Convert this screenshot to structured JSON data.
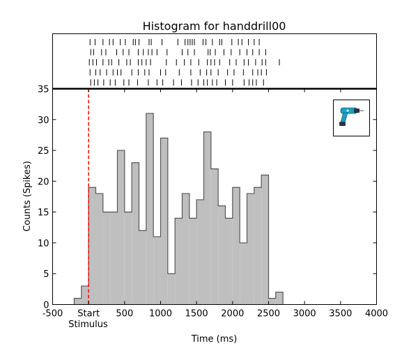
{
  "chart_data": {
    "type": "bar",
    "title": "Histogram for handdrill00",
    "xlabel": "Time (ms)",
    "ylabel": "Counts (Spikes)",
    "xlim": [
      -500,
      4000
    ],
    "ylim": [
      0,
      35
    ],
    "xticks": [
      -500,
      0,
      500,
      1000,
      1500,
      2000,
      2500,
      3000,
      3500,
      4000
    ],
    "xtick_labels": [
      "-500",
      "Start",
      "500",
      "1000",
      "1500",
      "2000",
      "2500",
      "3000",
      "3500",
      "4000"
    ],
    "stimulus_label": "Stimulus",
    "yticks": [
      0,
      5,
      10,
      15,
      20,
      25,
      30,
      35
    ],
    "bin_width": 100,
    "bin_starts": [
      -200,
      -100,
      0,
      100,
      200,
      300,
      400,
      500,
      600,
      700,
      800,
      900,
      1000,
      1100,
      1200,
      1300,
      1400,
      1500,
      1600,
      1700,
      1800,
      1900,
      2000,
      2100,
      2200,
      2300,
      2400,
      2500,
      2600
    ],
    "values": [
      1,
      3,
      19,
      18,
      15,
      15,
      25,
      15,
      23,
      12,
      31,
      11,
      27,
      5,
      14,
      18,
      14,
      17,
      28,
      22,
      16,
      14,
      19,
      10,
      18,
      19,
      21,
      1,
      2
    ],
    "stimulus_onset": 0,
    "bar_color": "#bfbfbf",
    "stimulus_line_color": "#ff0000",
    "raster_trials": [
      [
        20,
        90,
        200,
        290,
        340,
        440,
        510,
        620,
        650,
        700,
        840,
        870,
        1020,
        1240,
        1340,
        1380,
        1410,
        1440,
        1470,
        1590,
        1630,
        1720,
        1820,
        1850,
        1990,
        2080,
        2130,
        2220,
        2300,
        2370
      ],
      [
        30,
        70,
        180,
        240,
        390,
        480,
        560,
        690,
        760,
        830,
        880,
        950,
        1090,
        1300,
        1380,
        1470,
        1660,
        1690,
        1760,
        1880,
        1980,
        2100,
        2200,
        2280,
        2370,
        2460
      ],
      [
        10,
        60,
        110,
        200,
        280,
        320,
        420,
        530,
        580,
        690,
        740,
        800,
        860,
        1080,
        1220,
        1330,
        1420,
        1530,
        1650,
        1700,
        1750,
        1820,
        1960,
        2050,
        2160,
        2220,
        2320,
        2410,
        2460,
        2650
      ],
      [
        20,
        100,
        160,
        250,
        340,
        400,
        450,
        600,
        690,
        780,
        840,
        1000,
        1070,
        1260,
        1420,
        1550,
        1640,
        1700,
        1800,
        1930,
        2020,
        2150,
        2280,
        2350,
        2400,
        2470
      ],
      [
        30,
        80,
        130,
        210,
        300,
        370,
        490,
        560,
        680,
        830,
        950,
        1030,
        1180,
        1290,
        1430,
        1520,
        1600,
        1650,
        1720,
        1780,
        1900,
        2000,
        2160,
        2230,
        2280,
        2330,
        2430
      ]
    ],
    "icon_name": "drill-icon"
  }
}
